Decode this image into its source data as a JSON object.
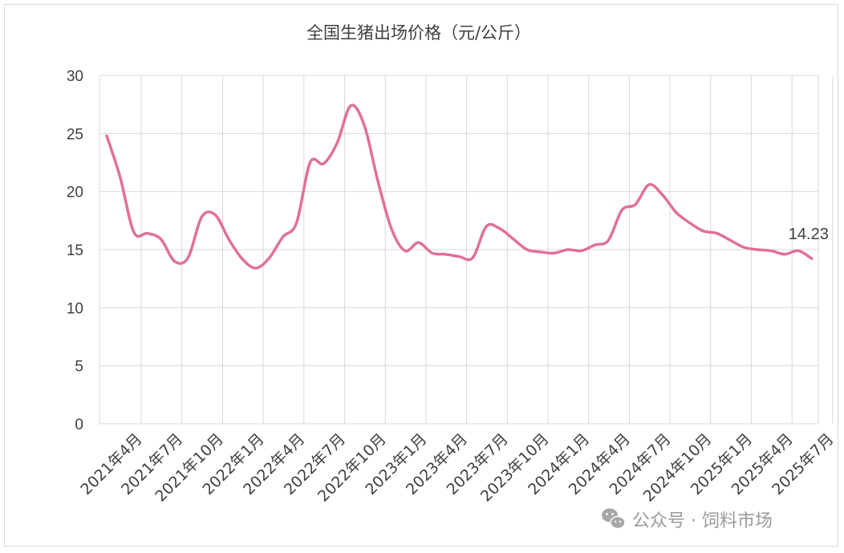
{
  "chart_data": {
    "type": "line",
    "title": "全国生猪出场价格（元/公斤）",
    "xlabel": "",
    "ylabel": "",
    "ylim": [
      0,
      30
    ],
    "yticks": [
      0,
      5,
      10,
      15,
      20,
      25,
      30
    ],
    "grid": true,
    "legend": "none",
    "line_color": "#e0709a",
    "x_tick_labels": [
      "2021年4月",
      "2021年7月",
      "2021年10月",
      "2022年1月",
      "2022年4月",
      "2022年7月",
      "2022年10月",
      "2023年1月",
      "2023年4月",
      "2023年7月",
      "2023年10月",
      "2024年1月",
      "2024年4月",
      "2024年7月",
      "2024年10月",
      "2025年1月",
      "2025年4月",
      "2025年7月"
    ],
    "x": [
      "2021-04",
      "2021-05",
      "2021-06",
      "2021-07",
      "2021-08",
      "2021-09",
      "2021-10",
      "2021-11",
      "2021-12",
      "2022-01",
      "2022-02",
      "2022-03",
      "2022-04",
      "2022-05",
      "2022-06",
      "2022-07",
      "2022-08",
      "2022-09",
      "2022-10",
      "2022-11",
      "2022-12",
      "2023-01",
      "2023-02",
      "2023-03",
      "2023-04",
      "2023-05",
      "2023-06",
      "2023-07",
      "2023-08",
      "2023-09",
      "2023-10",
      "2023-11",
      "2023-12",
      "2024-01",
      "2024-02",
      "2024-03",
      "2024-04",
      "2024-05",
      "2024-06",
      "2024-07",
      "2024-08",
      "2024-09",
      "2024-10",
      "2024-11",
      "2024-12",
      "2025-01",
      "2025-02",
      "2025-03",
      "2025-04",
      "2025-05",
      "2025-06",
      "2025-07",
      "2025-08"
    ],
    "values": [
      24.8,
      21.2,
      16.5,
      16.4,
      15.9,
      14.0,
      14.3,
      17.8,
      18.0,
      15.9,
      14.2,
      13.4,
      14.3,
      16.1,
      17.3,
      22.5,
      22.4,
      24.2,
      27.4,
      25.7,
      20.9,
      16.8,
      14.9,
      15.6,
      14.7,
      14.6,
      14.4,
      14.3,
      17.0,
      16.8,
      15.9,
      15.0,
      14.8,
      14.7,
      15.0,
      14.9,
      15.4,
      15.8,
      18.4,
      18.9,
      20.6,
      19.7,
      18.2,
      17.3,
      16.6,
      16.4,
      15.8,
      15.2,
      15.0,
      14.9,
      14.6,
      14.9,
      14.23
    ],
    "data_labels": [
      {
        "index": 52,
        "text": "14.23"
      }
    ]
  },
  "watermark": {
    "icon": "wechat-icon",
    "text": "公众号 · 饲料市场"
  }
}
